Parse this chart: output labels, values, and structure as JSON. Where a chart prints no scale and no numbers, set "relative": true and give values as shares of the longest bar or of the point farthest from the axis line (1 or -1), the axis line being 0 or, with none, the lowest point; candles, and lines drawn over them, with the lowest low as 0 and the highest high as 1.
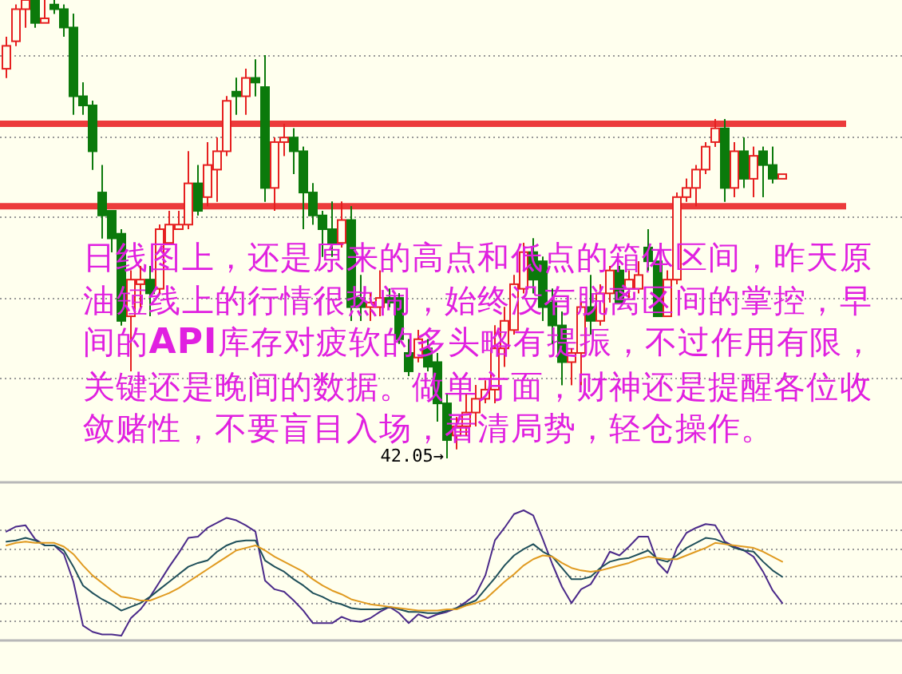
{
  "chart_data": [
    {
      "type": "candlestick",
      "relative": true,
      "grid": true,
      "categories": [
        null,
        null,
        null,
        null,
        null,
        null,
        null,
        null,
        null,
        null,
        null,
        null,
        null,
        null,
        null,
        null,
        null,
        null,
        null,
        null,
        null,
        null,
        null,
        null,
        null,
        null,
        null,
        null,
        null,
        null,
        null,
        null,
        null,
        null,
        null,
        null,
        null,
        null,
        null,
        null,
        null,
        null,
        null,
        null,
        null,
        null,
        null,
        null,
        null,
        null,
        null,
        null,
        null,
        null,
        null,
        null,
        null,
        null,
        null,
        null,
        null,
        null,
        null,
        null,
        null,
        null,
        null,
        null,
        null,
        null,
        null,
        null,
        null,
        null,
        null,
        null,
        null,
        null,
        null,
        null,
        null,
        null
      ],
      "ohlc": [
        [
          0.85,
          0.92,
          0.83,
          0.9
        ],
        [
          0.91,
          0.99,
          0.9,
          0.98
        ],
        [
          0.98,
          1.0,
          0.94,
          1.0
        ],
        [
          1.0,
          1.0,
          0.94,
          0.95
        ],
        [
          0.95,
          1.0,
          0.95,
          0.96
        ],
        [
          0.99,
          1.0,
          0.97,
          0.98
        ],
        [
          0.98,
          0.99,
          0.92,
          0.94
        ],
        [
          0.94,
          0.97,
          0.75,
          0.79
        ],
        [
          0.79,
          0.82,
          0.75,
          0.77
        ],
        [
          0.77,
          0.78,
          0.63,
          0.67
        ],
        [
          0.58,
          0.64,
          0.48,
          0.53
        ],
        [
          0.54,
          0.54,
          0.45,
          0.48
        ],
        [
          0.49,
          0.5,
          0.29,
          0.3
        ],
        [
          0.31,
          0.41,
          0.19,
          0.39
        ],
        [
          0.38,
          0.42,
          0.33,
          0.39
        ],
        [
          0.39,
          0.42,
          0.31,
          0.36
        ],
        [
          0.37,
          0.51,
          0.36,
          0.5
        ],
        [
          0.47,
          0.54,
          0.47,
          0.51
        ],
        [
          0.5,
          0.54,
          0.5,
          0.51
        ],
        [
          0.51,
          0.67,
          0.5,
          0.6
        ],
        [
          0.6,
          0.64,
          0.53,
          0.54
        ],
        [
          0.57,
          0.69,
          0.55,
          0.64
        ],
        [
          0.63,
          0.7,
          0.56,
          0.67
        ],
        [
          0.67,
          0.79,
          0.66,
          0.78
        ],
        [
          0.8,
          0.83,
          0.75,
          0.79
        ],
        [
          0.79,
          0.85,
          0.75,
          0.83
        ],
        [
          0.83,
          0.87,
          0.79,
          0.82
        ],
        [
          0.81,
          0.88,
          0.56,
          0.59
        ],
        [
          0.59,
          0.7,
          0.54,
          0.69
        ],
        [
          0.69,
          0.73,
          0.66,
          0.7
        ],
        [
          0.7,
          0.72,
          0.62,
          0.67
        ],
        [
          0.67,
          0.68,
          0.5,
          0.58
        ],
        [
          0.58,
          0.6,
          0.51,
          0.53
        ],
        [
          0.53,
          0.54,
          0.44,
          0.5
        ],
        [
          0.5,
          0.56,
          0.44,
          0.47
        ],
        [
          0.47,
          0.56,
          0.46,
          0.52
        ],
        [
          0.52,
          0.55,
          0.3,
          0.33
        ],
        [
          0.35,
          0.4,
          0.3,
          0.33
        ],
        [
          0.33,
          0.36,
          0.3,
          0.34
        ],
        [
          0.33,
          0.41,
          0.31,
          0.35
        ],
        [
          0.35,
          0.37,
          0.33,
          0.34
        ],
        [
          0.35,
          0.36,
          0.25,
          0.26
        ],
        [
          0.23,
          0.26,
          0.18,
          0.19
        ],
        [
          0.22,
          0.28,
          0.21,
          0.26
        ],
        [
          0.24,
          0.26,
          0.19,
          0.2
        ],
        [
          0.21,
          0.23,
          0.08,
          0.12
        ],
        [
          0.12,
          0.14,
          0.0,
          0.04
        ],
        [
          0.05,
          0.09,
          0.02,
          0.07
        ],
        [
          0.07,
          0.14,
          0.05,
          0.1
        ],
        [
          0.1,
          0.16,
          0.07,
          0.13
        ],
        [
          0.13,
          0.17,
          0.12,
          0.15
        ],
        [
          0.15,
          0.29,
          0.12,
          0.24
        ],
        [
          0.24,
          0.33,
          0.2,
          0.3
        ],
        [
          0.28,
          0.4,
          0.27,
          0.38
        ],
        [
          0.37,
          0.47,
          0.36,
          0.45
        ],
        [
          0.45,
          0.48,
          0.36,
          0.39
        ],
        [
          0.43,
          0.44,
          0.3,
          0.33
        ],
        [
          0.34,
          0.37,
          0.25,
          0.29
        ],
        [
          0.29,
          0.32,
          0.16,
          0.21
        ],
        [
          0.21,
          0.24,
          0.16,
          0.23
        ],
        [
          0.23,
          0.34,
          0.16,
          0.33
        ],
        [
          0.33,
          0.4,
          0.27,
          0.3
        ],
        [
          0.3,
          0.38,
          0.29,
          0.36
        ],
        [
          0.36,
          0.42,
          0.34,
          0.41
        ],
        [
          0.41,
          0.42,
          0.34,
          0.34
        ],
        [
          0.37,
          0.41,
          0.35,
          0.39
        ],
        [
          0.37,
          0.43,
          0.36,
          0.4
        ],
        [
          0.46,
          0.5,
          0.41,
          0.43
        ],
        [
          0.43,
          0.43,
          0.31,
          0.31
        ],
        [
          0.31,
          0.41,
          0.31,
          0.39
        ],
        [
          0.39,
          0.58,
          0.38,
          0.57
        ],
        [
          0.57,
          0.61,
          0.56,
          0.59
        ],
        [
          0.59,
          0.64,
          0.55,
          0.63
        ],
        [
          0.63,
          0.69,
          0.62,
          0.68
        ],
        [
          0.69,
          0.74,
          0.68,
          0.72
        ],
        [
          0.72,
          0.74,
          0.56,
          0.59
        ],
        [
          0.59,
          0.69,
          0.57,
          0.67
        ],
        [
          0.67,
          0.7,
          0.59,
          0.61
        ],
        [
          0.61,
          0.68,
          0.57,
          0.66
        ],
        [
          0.67,
          0.68,
          0.57,
          0.64
        ],
        [
          0.64,
          0.68,
          0.6,
          0.61
        ],
        [
          0.61,
          0.62,
          0.61,
          0.62
        ]
      ],
      "ref_lines": [
        {
          "axis": "y",
          "value": 0.73,
          "color": "#ec3b3b"
        },
        {
          "axis": "y",
          "value": 0.55,
          "color": "#ec3b3b"
        }
      ],
      "annotations": [
        "42.05→",
        "日线图上，还是原来的高点和低点的箱体区间，昨天原油短线上的行情很热闹，始终没有脱离区间的掌控，早间的**API**库存对疲软的多头略有提振，不过作用有限，关键还是晚间的数据。做单方面，财神还是提醒各位收敛赌性，不要盲目入场，看清局势，轻仓操作。"
      ]
    },
    {
      "type": "line",
      "relative": true,
      "grid": true,
      "categories": [
        null,
        null,
        null,
        null,
        null,
        null,
        null,
        null,
        null,
        null,
        null,
        null,
        null,
        null,
        null,
        null,
        null,
        null,
        null,
        null,
        null,
        null,
        null,
        null,
        null,
        null,
        null,
        null,
        null,
        null,
        null,
        null,
        null,
        null,
        null,
        null,
        null,
        null,
        null,
        null,
        null,
        null,
        null,
        null,
        null,
        null,
        null,
        null,
        null,
        null,
        null,
        null,
        null,
        null,
        null,
        null,
        null,
        null,
        null,
        null,
        null,
        null,
        null,
        null,
        null,
        null,
        null,
        null,
        null,
        null,
        null,
        null,
        null,
        null,
        null,
        null,
        null,
        null,
        null,
        null,
        null,
        null
      ],
      "series": [
        {
          "color": "#4b2a8a",
          "values": [
            0.83,
            0.87,
            0.88,
            0.77,
            0.72,
            0.72,
            0.65,
            0.43,
            0.08,
            0.03,
            0.01,
            0.01,
            0,
            0.14,
            0.21,
            0.31,
            0.43,
            0.55,
            0.66,
            0.78,
            0.79,
            0.86,
            0.9,
            0.94,
            0.92,
            0.88,
            0.83,
            0.44,
            0.37,
            0.35,
            0.28,
            0.2,
            0.1,
            0.1,
            0.1,
            0.15,
            0.12,
            0.11,
            0.14,
            0.19,
            0.23,
            0.18,
            0.1,
            0.17,
            0.14,
            0.17,
            0.19,
            0.22,
            0.27,
            0.33,
            0.48,
            0.76,
            0.86,
            0.97,
            1.0,
            0.96,
            0.77,
            0.57,
            0.39,
            0.26,
            0.37,
            0.41,
            0.53,
            0.67,
            0.64,
            0.71,
            0.79,
            0.79,
            0.58,
            0.5,
            0.7,
            0.82,
            0.86,
            0.89,
            0.88,
            0.75,
            0.71,
            0.68,
            0.63,
            0.51,
            0.36,
            0.26
          ]
        },
        {
          "color": "#1f4f5a",
          "values": [
            0.75,
            0.76,
            0.78,
            0.76,
            0.72,
            0.72,
            0.68,
            0.55,
            0.4,
            0.34,
            0.29,
            0.25,
            0.2,
            0.23,
            0.26,
            0.31,
            0.37,
            0.43,
            0.49,
            0.55,
            0.58,
            0.6,
            0.67,
            0.72,
            0.75,
            0.76,
            0.76,
            0.6,
            0.55,
            0.51,
            0.45,
            0.4,
            0.34,
            0.31,
            0.27,
            0.25,
            0.22,
            0.21,
            0.21,
            0.21,
            0.23,
            0.21,
            0.19,
            0.19,
            0.18,
            0.18,
            0.2,
            0.22,
            0.25,
            0.28,
            0.37,
            0.46,
            0.56,
            0.64,
            0.69,
            0.73,
            0.67,
            0.63,
            0.54,
            0.45,
            0.45,
            0.47,
            0.54,
            0.59,
            0.61,
            0.62,
            0.65,
            0.68,
            0.61,
            0.59,
            0.64,
            0.7,
            0.74,
            0.78,
            0.77,
            0.74,
            0.7,
            0.68,
            0.67,
            0.59,
            0.52,
            0.47
          ]
        },
        {
          "color": "#e09a20",
          "values": [
            0.72,
            0.74,
            0.75,
            0.74,
            0.74,
            0.74,
            0.71,
            0.65,
            0.56,
            0.48,
            0.42,
            0.36,
            0.31,
            0.3,
            0.28,
            0.28,
            0.31,
            0.34,
            0.38,
            0.43,
            0.48,
            0.53,
            0.58,
            0.63,
            0.68,
            0.7,
            0.72,
            0.68,
            0.63,
            0.59,
            0.55,
            0.51,
            0.45,
            0.4,
            0.36,
            0.33,
            0.29,
            0.27,
            0.25,
            0.24,
            0.23,
            0.22,
            0.21,
            0.2,
            0.2,
            0.2,
            0.21,
            0.21,
            0.24,
            0.26,
            0.29,
            0.36,
            0.43,
            0.49,
            0.56,
            0.61,
            0.64,
            0.63,
            0.58,
            0.54,
            0.52,
            0.51,
            0.52,
            0.54,
            0.56,
            0.58,
            0.61,
            0.63,
            0.62,
            0.61,
            0.61,
            0.64,
            0.67,
            0.7,
            0.74,
            0.73,
            0.72,
            0.71,
            0.7,
            0.67,
            0.63,
            0.59
          ]
        }
      ]
    }
  ]
}
